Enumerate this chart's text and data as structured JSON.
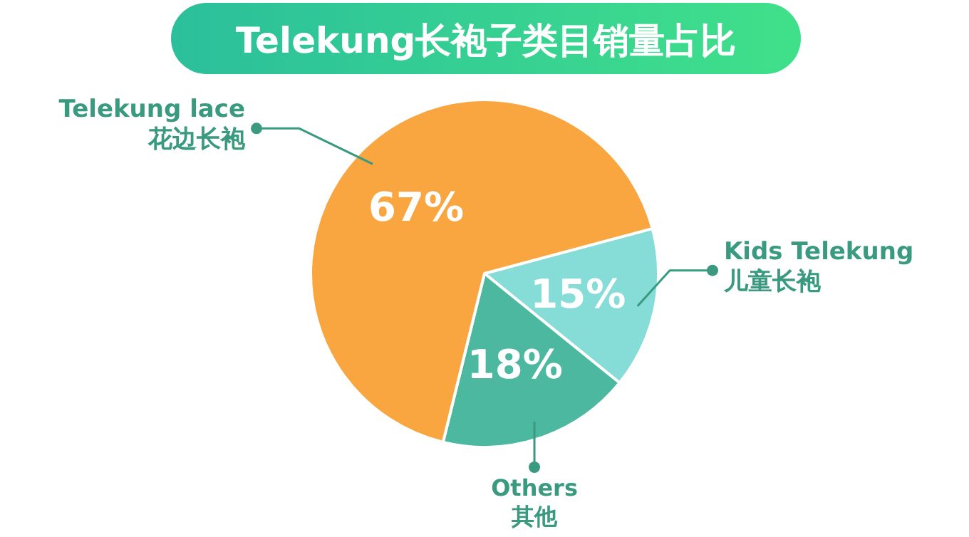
{
  "chart_data": {
    "type": "pie",
    "title": "Telekung长袍子类目销量占比",
    "categories": [
      "Kids Telekung\n儿童长袍",
      "Others\n其他",
      "Telekung lace\n花边长袍"
    ],
    "values": [
      15,
      18,
      67
    ],
    "colors": [
      "#86ddd7",
      "#4cb89f",
      "#f9a640"
    ],
    "value_labels": [
      "15%",
      "18%",
      "67%"
    ]
  }
}
